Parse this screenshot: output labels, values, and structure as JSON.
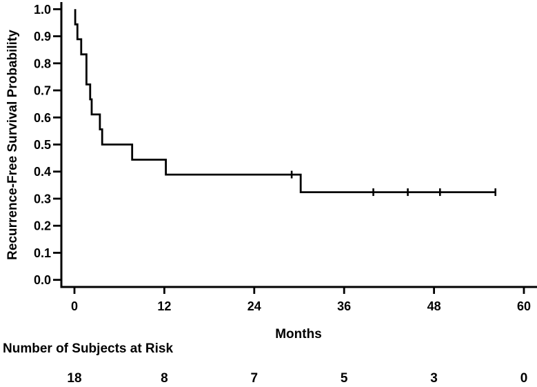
{
  "chart_data": {
    "type": "line",
    "subtype": "kaplan-meier-step-curve",
    "title": "",
    "xlabel": "Months",
    "ylabel": "Recurrence-Free Survival Probability",
    "xlim": [
      0,
      60
    ],
    "ylim": [
      0.0,
      1.0
    ],
    "x_ticks": [
      0,
      12,
      24,
      36,
      48,
      60
    ],
    "y_ticks": [
      0.0,
      0.1,
      0.2,
      0.3,
      0.4,
      0.5,
      0.6,
      0.7,
      0.8,
      0.9,
      1.0
    ],
    "grid": false,
    "legend": "none",
    "line_color": "#000000",
    "series": [
      {
        "name": "recurrence-free-survival",
        "color": "#000000",
        "start": {
          "t": 0.1,
          "s": 1.0
        },
        "steps": [
          {
            "t": 0.1,
            "s": 0.944
          },
          {
            "t": 0.4,
            "s": 0.889
          },
          {
            "t": 0.9,
            "s": 0.833
          },
          {
            "t": 1.6,
            "s": 0.722
          },
          {
            "t": 2.1,
            "s": 0.667
          },
          {
            "t": 2.3,
            "s": 0.611
          },
          {
            "t": 3.4,
            "s": 0.556
          },
          {
            "t": 3.7,
            "s": 0.5
          },
          {
            "t": 7.7,
            "s": 0.444
          },
          {
            "t": 12.2,
            "s": 0.389
          },
          {
            "t": 30.2,
            "s": 0.324
          }
        ],
        "end_t": 56.2,
        "censored": [
          {
            "t": 29.0,
            "s": 0.389
          },
          {
            "t": 39.9,
            "s": 0.324
          },
          {
            "t": 44.5,
            "s": 0.324
          },
          {
            "t": 48.8,
            "s": 0.324
          },
          {
            "t": 56.2,
            "s": 0.324
          }
        ]
      }
    ],
    "risk_table": {
      "title": "Number of Subjects at Risk",
      "times": [
        0,
        12,
        24,
        36,
        48,
        60
      ],
      "counts": [
        18,
        8,
        7,
        5,
        3,
        0
      ]
    }
  }
}
